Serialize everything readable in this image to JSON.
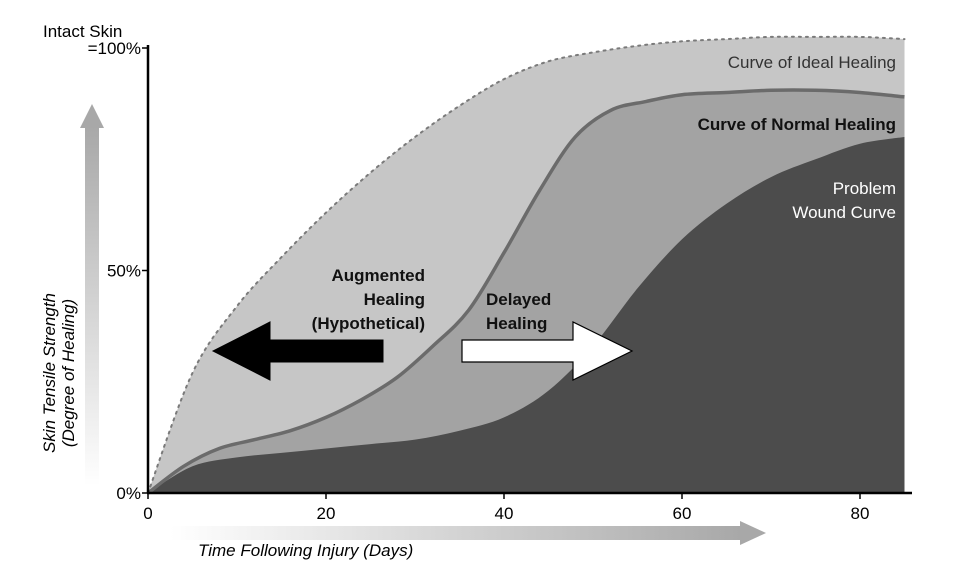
{
  "chart_data": {
    "type": "area",
    "top_label": "Intact Skin",
    "ylabel_line1": "Skin Tensile Strength",
    "ylabel_line2": "(Degree of Healing)",
    "xlabel": "Time Following Injury (Days)",
    "xlim": [
      0,
      85
    ],
    "ylim": [
      0,
      100
    ],
    "x_ticks": [
      {
        "value": 0,
        "label": "0"
      },
      {
        "value": 20,
        "label": "20"
      },
      {
        "value": 40,
        "label": "40"
      },
      {
        "value": 60,
        "label": "60"
      },
      {
        "value": 80,
        "label": "80"
      }
    ],
    "y_ticks": [
      {
        "value": 0,
        "label": "0%"
      },
      {
        "value": 50,
        "label": "50%"
      },
      {
        "value": 100,
        "label": "=100%"
      }
    ],
    "series": [
      {
        "name": "Curve of Ideal Healing",
        "color": "#c6c6c6",
        "x": [
          0,
          5,
          10,
          15,
          20,
          25,
          30,
          35,
          40,
          45,
          50,
          55,
          60,
          65,
          70,
          75,
          80,
          85
        ],
        "values": [
          0,
          27,
          42,
          53,
          63,
          72,
          80,
          87,
          93,
          97,
          99,
          100.5,
          101.5,
          102,
          102.5,
          102.5,
          102.5,
          102
        ]
      },
      {
        "name": "Curve of Normal Healing",
        "color": "#a3a3a3",
        "x": [
          0,
          4,
          8,
          12,
          16,
          20,
          24,
          28,
          32,
          36,
          40,
          44,
          48,
          52,
          56,
          60,
          65,
          70,
          75,
          80,
          85
        ],
        "values": [
          0,
          6,
          10,
          12,
          14,
          17,
          21,
          26,
          33,
          41,
          54,
          68,
          80,
          86,
          88,
          89.5,
          90,
          90.5,
          90.5,
          90,
          89
        ]
      },
      {
        "name": "Problem Wound Curve",
        "color": "#4c4c4c",
        "x": [
          0,
          5,
          10,
          15,
          20,
          25,
          30,
          35,
          40,
          45,
          50,
          55,
          60,
          65,
          70,
          75,
          80,
          85
        ],
        "values": [
          0,
          6,
          8,
          9,
          10,
          11,
          12,
          14,
          17,
          23,
          33,
          46,
          57,
          65,
          71,
          75,
          78.5,
          80
        ]
      }
    ],
    "annotations": {
      "ideal": [
        "Curve of Ideal Healing"
      ],
      "normal": [
        "Curve of Normal Healing"
      ],
      "problem": [
        "Problem",
        "Wound Curve"
      ],
      "augmented": [
        "Augmented",
        "Healing",
        "(Hypothetical)"
      ],
      "delayed": [
        "Delayed",
        "Healing"
      ]
    }
  }
}
